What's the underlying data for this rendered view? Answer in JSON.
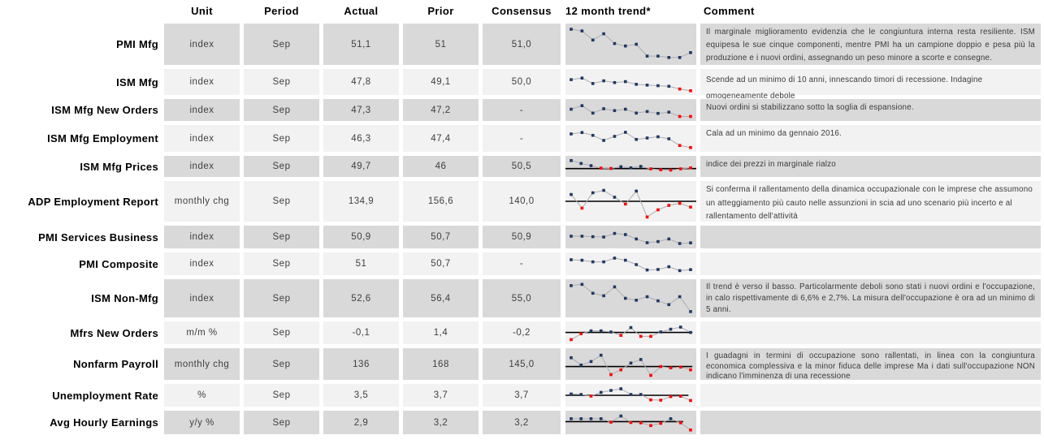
{
  "columns": {
    "unit": "Unit",
    "period": "Period",
    "actual": "Actual",
    "prior": "Prior",
    "consensus": "Consensus",
    "trend": "12 month trend*",
    "comment": "Comment"
  },
  "colors": {
    "row_dark": "#D9D9D9",
    "row_light": "#F2F2F2",
    "navy": "#1F3864",
    "red": "#FF0000",
    "connector": "#ADADAD",
    "refline": "#000000"
  },
  "rows": [
    {
      "label": "PMI Mfg",
      "unit": "index",
      "period": "Sep",
      "actual": "51,1",
      "prior": "51",
      "consensus": "51,0",
      "comment": "Il marginale miglioramento evidenzia che le congiuntura interna resta resiliente.  ISM equipesa le sue cinque componenti, mentre PMI ha un campione doppio e pesa  più la produzione e i nuovi ordini, assegnando un peso minore a scorte e consegne.",
      "trend": {
        "refline": null,
        "refline_end": 1,
        "points": [
          [
            93,
            0
          ],
          [
            88,
            0
          ],
          [
            62,
            0
          ],
          [
            80,
            0
          ],
          [
            52,
            0
          ],
          [
            45,
            0
          ],
          [
            50,
            0
          ],
          [
            16,
            0
          ],
          [
            16,
            0
          ],
          [
            12,
            0
          ],
          [
            12,
            0
          ],
          [
            26,
            0
          ]
        ]
      }
    },
    {
      "label": "ISM Mfg",
      "unit": "index",
      "period": "Sep",
      "actual": "47,8",
      "prior": "49,1",
      "consensus": "50,0",
      "comment": "Scende ad un minimo di 10 anni, innescando timori di recessione. Indagine omogeneamente debole",
      "trend": {
        "refline": null,
        "refline_end": 1,
        "points": [
          [
            62,
            0
          ],
          [
            70,
            0
          ],
          [
            42,
            0
          ],
          [
            56,
            0
          ],
          [
            47,
            0
          ],
          [
            52,
            0
          ],
          [
            38,
            0
          ],
          [
            34,
            0
          ],
          [
            31,
            0
          ],
          [
            28,
            0
          ],
          [
            14,
            1
          ],
          [
            5,
            1
          ]
        ]
      }
    },
    {
      "label": "ISM Mfg New Orders",
      "unit": "index",
      "period": "Sep",
      "actual": "47,3",
      "prior": "47,2",
      "consensus": "-",
      "comment": "Nuovi ordini si stabilizzano sotto la soglia di espansione.",
      "trend": {
        "refline": null,
        "refline_end": 1,
        "points": [
          [
            55,
            0
          ],
          [
            78,
            0
          ],
          [
            30,
            0
          ],
          [
            58,
            0
          ],
          [
            46,
            0
          ],
          [
            55,
            0
          ],
          [
            30,
            0
          ],
          [
            40,
            0
          ],
          [
            28,
            0
          ],
          [
            36,
            0
          ],
          [
            8,
            1
          ],
          [
            8,
            1
          ]
        ]
      }
    },
    {
      "label": "ISM Mfg Employment",
      "unit": "index",
      "period": "Sep",
      "actual": "46,3",
      "prior": "47,4",
      "consensus": "-",
      "comment": "Cala ad un minimo da gennaio 2016.",
      "trend": {
        "refline": null,
        "refline_end": 1,
        "points": [
          [
            72,
            0
          ],
          [
            79,
            0
          ],
          [
            65,
            0
          ],
          [
            40,
            0
          ],
          [
            60,
            0
          ],
          [
            80,
            0
          ],
          [
            45,
            0
          ],
          [
            52,
            0
          ],
          [
            58,
            0
          ],
          [
            48,
            0
          ],
          [
            15,
            1
          ],
          [
            5,
            1
          ]
        ]
      }
    },
    {
      "label": "ISM Mfg Prices",
      "unit": "index",
      "period": "Sep",
      "actual": "49,7",
      "prior": "46",
      "consensus": "50,5",
      "comment": "indice dei prezzi in marginale rialzo",
      "trend": {
        "refline": 35,
        "refline_end": 1,
        "points": [
          [
            90,
            0
          ],
          [
            70,
            0
          ],
          [
            55,
            0
          ],
          [
            38,
            1
          ],
          [
            36,
            1
          ],
          [
            48,
            0
          ],
          [
            40,
            0
          ],
          [
            50,
            0
          ],
          [
            33,
            1
          ],
          [
            27,
            1
          ],
          [
            25,
            1
          ],
          [
            33,
            1
          ],
          [
            40,
            1
          ]
        ]
      }
    },
    {
      "label": "ADP Employment Report",
      "unit": "monthly chg",
      "period": "Sep",
      "actual": "134,9",
      "prior": "156,6",
      "consensus": "140,0",
      "comment": "Si conferma il rallentamento della dinamica occupazionale con le imprese che assumono un atteggiamento più cauto nelle assunzioni in scia ad uno scenario più incerto e al rallentamento dell'attività",
      "trend": {
        "refline": 50,
        "refline_end": 1,
        "points": [
          [
            70,
            0
          ],
          [
            30,
            1
          ],
          [
            75,
            0
          ],
          [
            82,
            0
          ],
          [
            62,
            0
          ],
          [
            42,
            1
          ],
          [
            80,
            0
          ],
          [
            4,
            1
          ],
          [
            25,
            1
          ],
          [
            38,
            1
          ],
          [
            44,
            1
          ],
          [
            33,
            1
          ]
        ]
      }
    },
    {
      "label": "PMI Services Business",
      "unit": "index",
      "period": "Sep",
      "actual": "50,9",
      "prior": "50,7",
      "consensus": "50,9",
      "comment": "",
      "trend": {
        "refline": null,
        "refline_end": 1,
        "points": [
          [
            55,
            0
          ],
          [
            55,
            0
          ],
          [
            52,
            0
          ],
          [
            50,
            0
          ],
          [
            72,
            0
          ],
          [
            65,
            0
          ],
          [
            38,
            0
          ],
          [
            15,
            0
          ],
          [
            22,
            0
          ],
          [
            38,
            0
          ],
          [
            10,
            0
          ],
          [
            14,
            0
          ]
        ]
      }
    },
    {
      "label": "PMI Composite",
      "unit": "index",
      "period": "Sep",
      "actual": "51",
      "prior": "50,7",
      "consensus": "-",
      "comment": "",
      "trend": {
        "refline": null,
        "refline_end": 1,
        "points": [
          [
            75,
            0
          ],
          [
            72,
            0
          ],
          [
            62,
            0
          ],
          [
            62,
            0
          ],
          [
            85,
            0
          ],
          [
            72,
            0
          ],
          [
            45,
            0
          ],
          [
            12,
            0
          ],
          [
            15,
            0
          ],
          [
            32,
            0
          ],
          [
            8,
            0
          ],
          [
            14,
            0
          ]
        ]
      }
    },
    {
      "label": "ISM Non-Mfg",
      "unit": "index",
      "period": "Sep",
      "actual": "52,6",
      "prior": "56,4",
      "consensus": "55,0",
      "comment": "Il trend è verso il basso. Particolarmente deboli sono stati i nuovi ordini e l'occupazione, in calo rispettivamente di 6,6% e 2,7%. La misura dell'occupazione è ora ad un minimo di 5 anni.",
      "trend": {
        "refline": null,
        "refline_end": 1,
        "points": [
          [
            90,
            0
          ],
          [
            94,
            0
          ],
          [
            66,
            0
          ],
          [
            58,
            0
          ],
          [
            86,
            0
          ],
          [
            50,
            0
          ],
          [
            44,
            0
          ],
          [
            55,
            0
          ],
          [
            42,
            0
          ],
          [
            30,
            0
          ],
          [
            55,
            0
          ],
          [
            8,
            0
          ]
        ]
      }
    },
    {
      "label": "Mfrs New Orders",
      "unit": "m/m %",
      "period": "Sep",
      "actual": "-0,1",
      "prior": "1,4",
      "consensus": "-0,2",
      "comment": "",
      "trend": {
        "refline": 52,
        "refline_end": 0.97,
        "points": [
          [
            8,
            1
          ],
          [
            44,
            1
          ],
          [
            62,
            0
          ],
          [
            62,
            0
          ],
          [
            55,
            0
          ],
          [
            34,
            1
          ],
          [
            82,
            0
          ],
          [
            28,
            1
          ],
          [
            28,
            1
          ],
          [
            55,
            0
          ],
          [
            72,
            0
          ],
          [
            85,
            0
          ],
          [
            52,
            0
          ]
        ]
      }
    },
    {
      "label": "Nonfarm Payroll",
      "unit": "monthly chg",
      "period": "Sep",
      "actual": "136",
      "prior": "168",
      "consensus": "145,0",
      "comment": "I guadagni in termini di occupazione sono rallentati, in linea con la congiuntura economica complessiva e la minor fiduca delle imprese  Ma i dati sull'occupazione NON indicano l'imminenza di una recessione",
      "trend": {
        "refline": 40,
        "refline_end": 0.97,
        "points": [
          [
            75,
            0
          ],
          [
            46,
            0
          ],
          [
            60,
            0
          ],
          [
            85,
            0
          ],
          [
            8,
            1
          ],
          [
            27,
            1
          ],
          [
            54,
            0
          ],
          [
            68,
            0
          ],
          [
            5,
            1
          ],
          [
            40,
            1
          ],
          [
            35,
            1
          ],
          [
            38,
            1
          ],
          [
            27,
            1
          ]
        ]
      }
    },
    {
      "label": "Unemployment Rate",
      "unit": "%",
      "period": "Sep",
      "actual": "3,5",
      "prior": "3,7",
      "consensus": "3,7",
      "comment": "",
      "trend": {
        "refline": 50,
        "refline_end": 0.94,
        "points": [
          [
            58,
            0
          ],
          [
            55,
            0
          ],
          [
            45,
            1
          ],
          [
            68,
            0
          ],
          [
            80,
            0
          ],
          [
            90,
            0
          ],
          [
            55,
            0
          ],
          [
            55,
            0
          ],
          [
            22,
            1
          ],
          [
            20,
            1
          ],
          [
            42,
            1
          ],
          [
            44,
            1
          ],
          [
            18,
            1
          ]
        ]
      }
    },
    {
      "label": "Avg Hourly Earnings",
      "unit": "y/y %",
      "period": "Sep",
      "actual": "2,9",
      "prior": "3,2",
      "consensus": "3,2",
      "comment": "",
      "trend": {
        "refline": 55,
        "refline_end": 0.9,
        "points": [
          [
            72,
            0
          ],
          [
            72,
            0
          ],
          [
            72,
            0
          ],
          [
            72,
            0
          ],
          [
            52,
            1
          ],
          [
            88,
            0
          ],
          [
            50,
            1
          ],
          [
            48,
            1
          ],
          [
            32,
            1
          ],
          [
            45,
            1
          ],
          [
            72,
            0
          ],
          [
            48,
            1
          ],
          [
            6,
            1
          ]
        ]
      }
    }
  ]
}
